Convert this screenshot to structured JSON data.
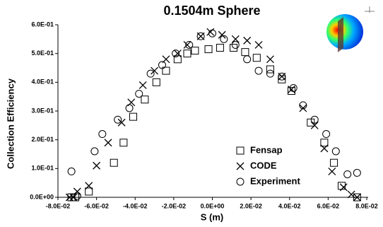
{
  "chart_data": {
    "type": "scatter",
    "title": "0.1504m Sphere",
    "x_label": "S (m)",
    "y_label": "Collection Efficiency",
    "xlim": [
      -0.08,
      0.08
    ],
    "xticks": [
      {
        "value": -0.08,
        "label": "-8.0E-02"
      },
      {
        "value": -0.06,
        "label": "-6.0E-02"
      },
      {
        "value": -0.04,
        "label": "-4.0E-02"
      },
      {
        "value": -0.02,
        "label": "-2.0E-02"
      },
      {
        "value": 0,
        "label": "0.0E+00"
      },
      {
        "value": 0.02,
        "label": "2.0E-02"
      },
      {
        "value": 0.04,
        "label": "4.0E-02"
      },
      {
        "value": 0.06,
        "label": "6.0E-02"
      },
      {
        "value": 0.08,
        "label": "8.0E-02"
      }
    ],
    "ylim": [
      0,
      0.6
    ],
    "yticks": [
      {
        "value": 0,
        "label": "0.0E+00"
      },
      {
        "value": 0.1,
        "label": "1.0E-01"
      },
      {
        "value": 0.2,
        "label": "2.0E-01"
      },
      {
        "value": 0.3,
        "label": "3.0E-01"
      },
      {
        "value": 0.4,
        "label": "4.0E-01"
      },
      {
        "value": 0.5,
        "label": "5.0E-01"
      },
      {
        "value": 0.6,
        "label": "6.0E-01"
      }
    ],
    "legend": "lower-center",
    "series": [
      {
        "name": "Fensap",
        "color": "#000000",
        "marker": "square",
        "x": [
          -0.073,
          -0.071,
          -0.064,
          -0.051,
          -0.046,
          -0.041,
          -0.035,
          -0.029,
          -0.024,
          -0.018,
          -0.013,
          -0.009,
          -0.002,
          0.004,
          0.011,
          0.017,
          0.023,
          0.03,
          0.036,
          0.041,
          0.051,
          0.058,
          0.063,
          0.067,
          0.075
        ],
        "values": [
          0,
          0,
          0.02,
          0.12,
          0.19,
          0.28,
          0.34,
          0.4,
          0.44,
          0.48,
          0.5,
          0.51,
          0.515,
          0.52,
          0.52,
          0.505,
          0.485,
          0.445,
          0.41,
          0.37,
          0.26,
          0.19,
          0.12,
          0.04,
          0
        ]
      },
      {
        "name": "CODE",
        "color": "#000000",
        "marker": "x",
        "x": [
          -0.074,
          -0.072,
          -0.07,
          -0.064,
          -0.06,
          -0.054,
          -0.047,
          -0.042,
          -0.036,
          -0.03,
          -0.024,
          -0.018,
          -0.013,
          -0.006,
          -0.001,
          0.005,
          0.012,
          0.018,
          0.024,
          0.03,
          0.036,
          0.041,
          0.047,
          0.053,
          0.058,
          0.062,
          0.068,
          0.072,
          0.075
        ],
        "values": [
          0,
          0,
          0.02,
          0.04,
          0.11,
          0.19,
          0.26,
          0.33,
          0.39,
          0.44,
          0.48,
          0.5,
          0.53,
          0.56,
          0.575,
          0.565,
          0.55,
          0.545,
          0.53,
          0.48,
          0.42,
          0.375,
          0.31,
          0.25,
          0.17,
          0.09,
          0.035,
          0.01,
          0
        ]
      },
      {
        "name": "Experiment",
        "color": "#000000",
        "marker": "circle",
        "x": [
          -0.073,
          -0.07,
          -0.061,
          -0.057,
          -0.049,
          -0.043,
          -0.038,
          -0.032,
          -0.026,
          -0.019,
          -0.012,
          -0.006,
          0,
          0.006,
          0.012,
          0.018,
          0.024,
          0.03,
          0.036,
          0.042,
          0.047,
          0.053,
          0.059,
          0.064,
          0.07,
          0.075
        ],
        "values": [
          0.09,
          0.005,
          0.16,
          0.22,
          0.27,
          0.31,
          0.36,
          0.43,
          0.46,
          0.5,
          0.53,
          0.56,
          0.57,
          0.55,
          0.53,
          0.48,
          0.44,
          0.43,
          0.42,
          0.38,
          0.32,
          0.27,
          0.22,
          0.16,
          0.08,
          0.085
        ]
      }
    ]
  }
}
